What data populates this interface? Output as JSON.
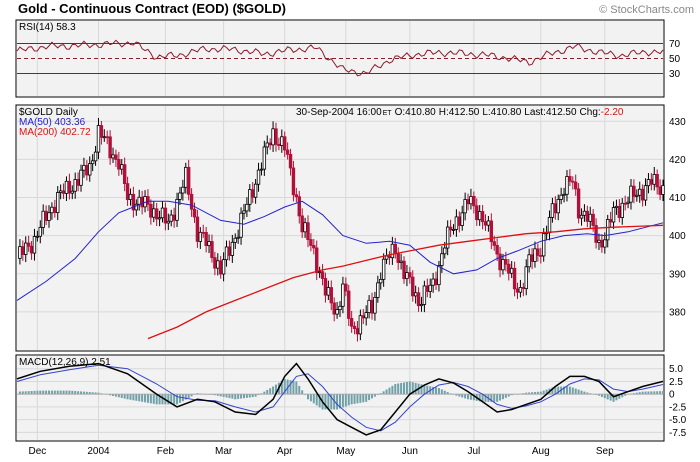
{
  "title": "Gold - Continuous Contract (EOD) ($GOLD)",
  "watermark": "© StockCharts.com",
  "colors": {
    "panel_bg": "#f2f2f2",
    "grid": "#d8d8d8",
    "candle_up": "#000000",
    "candle_down": "#b0103a",
    "ma50": "#2222cc",
    "ma200": "#dd1111",
    "rsi_line": "#8b1a2a",
    "macd_line": "#000000",
    "signal_line": "#3344cc",
    "histogram": "#70a0a8"
  },
  "rsi_panel": {
    "label": "RSI(14) 58.3",
    "ylim": [
      0,
      100
    ],
    "levels": [
      70,
      50,
      30
    ],
    "ticks": [
      "70",
      "50",
      "30"
    ],
    "ticks_v": [
      70,
      50,
      30
    ]
  },
  "price_panel": {
    "label": "$GOLD Daily",
    "ma50_label": "MA(50) 403.36",
    "ma200_label": "MA(200) 402.72",
    "stats": {
      "date": "30-Sep-2004 16:00",
      "tz": "ET",
      "open": "O:410.80",
      "high": "H:412.50",
      "low": "L:410.80",
      "last": "Last:412.50",
      "chg_label": "Chg:",
      "chg": "-2.20"
    },
    "ylim": [
      370,
      434
    ],
    "ticks": [
      "430",
      "420",
      "410",
      "400",
      "390",
      "380"
    ],
    "ticks_v": [
      430,
      420,
      410,
      400,
      390,
      380
    ]
  },
  "macd_panel": {
    "label": "MACD(12,26,9) 2.51",
    "ylim": [
      -9,
      7.5
    ],
    "ticks": [
      "5.0",
      "2.5",
      "0",
      "-2.5",
      "-5.0",
      "-7.5"
    ],
    "ticks_v": [
      5,
      2.5,
      0,
      -2.5,
      -5,
      -7.5
    ]
  },
  "x_axis": {
    "labels": [
      "Dec",
      "2004",
      "Feb",
      "Mar",
      "Apr",
      "May",
      "Jun",
      "Jul",
      "Aug",
      "Sep"
    ],
    "label_days": [
      7,
      28,
      51,
      71,
      92,
      113,
      135,
      157,
      180,
      202
    ]
  },
  "chart_data": [
    {
      "type": "line",
      "title": "RSI(14) 58.3",
      "ylim": [
        0,
        100
      ],
      "x": [
        0,
        10,
        20,
        30,
        40,
        48,
        55,
        65,
        75,
        85,
        95,
        103,
        112,
        120,
        128,
        136,
        145,
        152,
        160,
        168,
        176,
        183,
        192,
        200,
        208,
        216,
        222
      ],
      "y": [
        60,
        66,
        67,
        69,
        71,
        52,
        54,
        63,
        62,
        56,
        62,
        64,
        35,
        30,
        48,
        55,
        58,
        57,
        55,
        51,
        45,
        56,
        66,
        58,
        54,
        59,
        58
      ]
    },
    {
      "type": "candlestick",
      "title": "$GOLD Daily",
      "ylim": [
        370,
        434
      ],
      "x": [
        0,
        6,
        10,
        14,
        20,
        25,
        28,
        31,
        35,
        38,
        44,
        48,
        52,
        58,
        62,
        65,
        70,
        74,
        80,
        84,
        88,
        92,
        96,
        98,
        102,
        106,
        110,
        112,
        115,
        118,
        122,
        125,
        130,
        133,
        138,
        143,
        147,
        151,
        155,
        160,
        165,
        168,
        171,
        173,
        176,
        180,
        184,
        188,
        191,
        193,
        196,
        200,
        202,
        205,
        209,
        213,
        218,
        222
      ],
      "close": [
        394,
        399,
        405,
        410,
        414,
        418,
        427,
        424,
        419,
        410,
        408,
        406,
        403,
        415,
        401,
        398,
        391,
        398,
        410,
        419,
        427,
        423,
        410,
        402,
        396,
        385,
        380,
        387,
        375,
        378,
        381,
        391,
        397,
        390,
        383,
        387,
        398,
        404,
        409,
        405,
        395,
        392,
        387,
        386,
        393,
        397,
        406,
        413,
        414,
        407,
        405,
        398,
        400,
        406,
        409,
        411,
        414,
        412.5
      ],
      "series": [
        {
          "name": "MA(50) 403.36",
          "x": [
            0,
            10,
            20,
            28,
            35,
            45,
            52,
            60,
            70,
            78,
            85,
            92,
            98,
            105,
            112,
            120,
            128,
            135,
            142,
            150,
            158,
            165,
            172,
            180,
            188,
            196,
            202,
            210,
            222
          ],
          "values": [
            383,
            388,
            394,
            401,
            406,
            409,
            409,
            408,
            404,
            403,
            405,
            407.5,
            409,
            405.5,
            400,
            398,
            398.5,
            397.5,
            393,
            390,
            391,
            394,
            396,
            398.5,
            400,
            400.5,
            400,
            401,
            403.36
          ]
        },
        {
          "name": "MA(200) 402.72",
          "x": [
            45,
            55,
            65,
            75,
            85,
            95,
            105,
            112,
            120,
            128,
            135,
            145,
            155,
            165,
            175,
            185,
            195,
            205,
            215,
            222
          ],
          "values": [
            373,
            376,
            380,
            383,
            386,
            389,
            391,
            392,
            393.5,
            395,
            396,
            397.5,
            398.5,
            399.5,
            400.5,
            401,
            401.8,
            402.2,
            402.5,
            402.72
          ]
        }
      ]
    },
    {
      "type": "line",
      "title": "MACD(12,26,9) 2.51",
      "ylim": [
        -9,
        7.5
      ],
      "x": [
        0,
        8,
        18,
        28,
        38,
        48,
        55,
        62,
        68,
        75,
        82,
        88,
        92,
        96,
        100,
        105,
        110,
        115,
        120,
        125,
        130,
        135,
        140,
        145,
        150,
        155,
        160,
        165,
        170,
        175,
        180,
        185,
        190,
        195,
        200,
        205,
        210,
        215,
        222
      ],
      "series": [
        {
          "name": "MACD",
          "values": [
            3,
            4.5,
            5.5,
            6,
            4,
            0,
            -2.5,
            -1,
            -1.5,
            -3.5,
            -4,
            -1,
            3.5,
            6,
            3,
            -1.5,
            -5,
            -6.5,
            -8,
            -7,
            -3.5,
            0,
            1.8,
            3,
            2.2,
            0.5,
            -1.5,
            -3.5,
            -3,
            -2,
            -1,
            1.5,
            3.5,
            3.5,
            2.5,
            -0.5,
            0.5,
            1.5,
            2.51
          ]
        },
        {
          "name": "Signal",
          "values": [
            2.5,
            3.8,
            4.8,
            5.7,
            5,
            2,
            -0.5,
            -1.2,
            -1.3,
            -2.5,
            -3.5,
            -2.5,
            0.5,
            3.5,
            4,
            1.5,
            -2,
            -4.5,
            -6.5,
            -7.2,
            -5.5,
            -2.5,
            0,
            1.8,
            2.3,
            1.5,
            0,
            -2,
            -2.8,
            -2.3,
            -1.5,
            0,
            2,
            3,
            2.8,
            1,
            0.5,
            1,
            1.9
          ]
        },
        {
          "name": "Histogram",
          "values": [
            0.5,
            0.7,
            0.7,
            0.3,
            -1,
            -2,
            -2,
            0.2,
            -0.2,
            -1,
            -0.5,
            1.5,
            3,
            2.5,
            -1,
            -3,
            -3,
            -2,
            -1.5,
            0.2,
            2,
            2.5,
            1.8,
            1.2,
            -0.1,
            -1,
            -1.5,
            -1.5,
            -0.2,
            0.3,
            0.5,
            1.5,
            1.5,
            0.5,
            -0.3,
            -1.5,
            0,
            0.5,
            0.6
          ]
        }
      ]
    }
  ]
}
